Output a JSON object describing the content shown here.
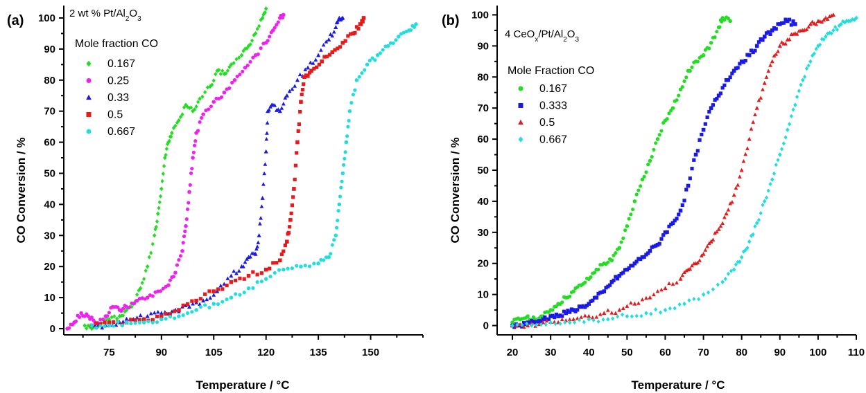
{
  "chart_data": [
    {
      "type": "scatter",
      "panel_label": "(a)",
      "title": "2 wt % Pt/Al2O3",
      "title_parts": {
        "a": "2 wt % Pt/Al",
        "b": "2",
        "c": "O",
        "d": "3"
      },
      "xlabel": "Temperature / °C",
      "ylabel": "CO Conversion / %",
      "xlim": [
        62,
        165
      ],
      "ylim": [
        -2,
        104
      ],
      "xticks": [
        75,
        90,
        105,
        120,
        135,
        150
      ],
      "yticks": [
        0,
        10,
        20,
        30,
        40,
        50,
        60,
        70,
        80,
        90,
        100
      ],
      "legend_title": "Mole fraction CO",
      "legend_position": "top-left",
      "series": [
        {
          "name": "0.167",
          "color": "#22dd22",
          "marker": "diamond",
          "points": [
            [
              68,
              1
            ],
            [
              70,
              0
            ],
            [
              72,
              1
            ],
            [
              75,
              3
            ],
            [
              78,
              4
            ],
            [
              80,
              6
            ],
            [
              82,
              8
            ],
            [
              84,
              13
            ],
            [
              86,
              20
            ],
            [
              88,
              30
            ],
            [
              89,
              37
            ],
            [
              90,
              45
            ],
            [
              91,
              55
            ],
            [
              92,
              60
            ],
            [
              93,
              63
            ],
            [
              95,
              67
            ],
            [
              97,
              72
            ],
            [
              99,
              70
            ],
            [
              101,
              74
            ],
            [
              104,
              78
            ],
            [
              106,
              83
            ],
            [
              108,
              82
            ],
            [
              110,
              85
            ],
            [
              113,
              88
            ],
            [
              115,
              91
            ],
            [
              117,
              95
            ],
            [
              119,
              100
            ],
            [
              120,
              103
            ]
          ]
        },
        {
          "name": "0.25",
          "color": "#ee22ee",
          "marker": "circle",
          "points": [
            [
              63,
              0
            ],
            [
              65,
              2
            ],
            [
              67,
              5
            ],
            [
              69,
              4
            ],
            [
              71,
              2
            ],
            [
              74,
              4
            ],
            [
              76,
              7
            ],
            [
              78,
              6
            ],
            [
              80,
              7
            ],
            [
              83,
              9
            ],
            [
              86,
              10
            ],
            [
              89,
              12
            ],
            [
              92,
              14
            ],
            [
              94,
              18
            ],
            [
              96,
              25
            ],
            [
              97,
              33
            ],
            [
              98,
              44
            ],
            [
              99,
              55
            ],
            [
              100,
              63
            ],
            [
              102,
              69
            ],
            [
              105,
              73
            ],
            [
              108,
              76
            ],
            [
              111,
              80
            ],
            [
              114,
              84
            ],
            [
              117,
              88
            ],
            [
              120,
              92
            ],
            [
              122,
              96
            ],
            [
              124,
              100
            ],
            [
              125,
              101
            ]
          ]
        },
        {
          "name": "0.33",
          "color": "#1a1ae6",
          "marker": "triangle",
          "points": [
            [
              70,
              1
            ],
            [
              74,
              1
            ],
            [
              78,
              2
            ],
            [
              82,
              3
            ],
            [
              86,
              4
            ],
            [
              90,
              5
            ],
            [
              94,
              6
            ],
            [
              98,
              7
            ],
            [
              102,
              9
            ],
            [
              106,
              12
            ],
            [
              110,
              17
            ],
            [
              113,
              20
            ],
            [
              115,
              23
            ],
            [
              117,
              24
            ],
            [
              118,
              30
            ],
            [
              119,
              42
            ],
            [
              120,
              57
            ],
            [
              120.5,
              70
            ],
            [
              122,
              72
            ],
            [
              124,
              70
            ],
            [
              126,
              75
            ],
            [
              129,
              80
            ],
            [
              132,
              84
            ],
            [
              135,
              88
            ],
            [
              138,
              93
            ],
            [
              140,
              97
            ],
            [
              141,
              100
            ],
            [
              142,
              100
            ]
          ]
        },
        {
          "name": "0.5",
          "color": "#e61a1a",
          "marker": "square",
          "points": [
            [
              70,
              1
            ],
            [
              75,
              2
            ],
            [
              80,
              2
            ],
            [
              85,
              3
            ],
            [
              90,
              4
            ],
            [
              95,
              6
            ],
            [
              100,
              9
            ],
            [
              105,
              12
            ],
            [
              110,
              15
            ],
            [
              115,
              17
            ],
            [
              120,
              19
            ],
            [
              124,
              22
            ],
            [
              126,
              28
            ],
            [
              127,
              35
            ],
            [
              128,
              45
            ],
            [
              129,
              60
            ],
            [
              130,
              73
            ],
            [
              131,
              81
            ],
            [
              133,
              83
            ],
            [
              136,
              86
            ],
            [
              139,
              89
            ],
            [
              142,
              92
            ],
            [
              145,
              95
            ],
            [
              147,
              98
            ],
            [
              148,
              100
            ]
          ]
        },
        {
          "name": "0.667",
          "color": "#22dddd",
          "marker": "circle",
          "points": [
            [
              70,
              1
            ],
            [
              75,
              1
            ],
            [
              80,
              2
            ],
            [
              85,
              2
            ],
            [
              90,
              3
            ],
            [
              95,
              4
            ],
            [
              100,
              6
            ],
            [
              105,
              8
            ],
            [
              110,
              10
            ],
            [
              115,
              13
            ],
            [
              120,
              16
            ],
            [
              125,
              19
            ],
            [
              130,
              20
            ],
            [
              135,
              21
            ],
            [
              138,
              23
            ],
            [
              140,
              30
            ],
            [
              141,
              40
            ],
            [
              142,
              50
            ],
            [
              143,
              60
            ],
            [
              144,
              70
            ],
            [
              146,
              80
            ],
            [
              149,
              85
            ],
            [
              152,
              88
            ],
            [
              155,
              91
            ],
            [
              158,
              94
            ],
            [
              161,
              96
            ],
            [
              163,
              98
            ]
          ]
        }
      ]
    },
    {
      "type": "scatter",
      "panel_label": "(b)",
      "title": "4 CeOx/Pt/Al2O3",
      "title_parts": {
        "a": "4 CeO",
        "b": "x",
        "c": "/Pt/Al",
        "d": "2",
        "e": "O",
        "f": "3"
      },
      "xlabel": "Temperature / °C",
      "ylabel": "CO Conversion / %",
      "xlim": [
        16,
        110
      ],
      "ylim": [
        -3,
        103
      ],
      "xticks": [
        20,
        30,
        40,
        50,
        60,
        70,
        80,
        90,
        100,
        110
      ],
      "yticks": [
        0,
        10,
        20,
        30,
        40,
        50,
        60,
        70,
        80,
        90,
        100
      ],
      "legend_title": "Mole Fraction CO",
      "legend_position": "top-left",
      "series": [
        {
          "name": "0.167",
          "color": "#22dd22",
          "marker": "circle",
          "points": [
            [
              20,
              1
            ],
            [
              22,
              2
            ],
            [
              24,
              3
            ],
            [
              26,
              2
            ],
            [
              28,
              3
            ],
            [
              30,
              5
            ],
            [
              32,
              7
            ],
            [
              34,
              9
            ],
            [
              36,
              11
            ],
            [
              38,
              13
            ],
            [
              40,
              15
            ],
            [
              42,
              18
            ],
            [
              44,
              20
            ],
            [
              46,
              21
            ],
            [
              48,
              25
            ],
            [
              50,
              32
            ],
            [
              52,
              40
            ],
            [
              54,
              47
            ],
            [
              56,
              53
            ],
            [
              58,
              60
            ],
            [
              60,
              66
            ],
            [
              62,
              70
            ],
            [
              64,
              76
            ],
            [
              66,
              82
            ],
            [
              68,
              85
            ],
            [
              70,
              87
            ],
            [
              72,
              91
            ],
            [
              74,
              96
            ],
            [
              75,
              99
            ],
            [
              77,
              98
            ]
          ]
        },
        {
          "name": "0.333",
          "color": "#1a1ae6",
          "marker": "square",
          "points": [
            [
              20,
              0
            ],
            [
              22,
              0
            ],
            [
              24,
              1
            ],
            [
              26,
              1
            ],
            [
              28,
              2
            ],
            [
              30,
              3
            ],
            [
              32,
              3
            ],
            [
              34,
              4
            ],
            [
              36,
              5
            ],
            [
              38,
              6
            ],
            [
              40,
              7
            ],
            [
              42,
              9
            ],
            [
              44,
              11
            ],
            [
              46,
              14
            ],
            [
              48,
              16
            ],
            [
              50,
              18
            ],
            [
              52,
              20
            ],
            [
              54,
              22
            ],
            [
              56,
              24
            ],
            [
              58,
              26
            ],
            [
              60,
              30
            ],
            [
              62,
              33
            ],
            [
              64,
              37
            ],
            [
              66,
              45
            ],
            [
              68,
              55
            ],
            [
              70,
              63
            ],
            [
              72,
              70
            ],
            [
              74,
              74
            ],
            [
              76,
              79
            ],
            [
              78,
              82
            ],
            [
              80,
              85
            ],
            [
              82,
              87
            ],
            [
              84,
              90
            ],
            [
              86,
              93
            ],
            [
              88,
              95
            ],
            [
              90,
              97
            ],
            [
              92,
              98
            ],
            [
              94,
              97
            ]
          ]
        },
        {
          "name": "0.5",
          "color": "#e61a1a",
          "marker": "triangle",
          "points": [
            [
              20,
              0
            ],
            [
              24,
              0
            ],
            [
              28,
              1
            ],
            [
              32,
              1
            ],
            [
              36,
              2
            ],
            [
              40,
              3
            ],
            [
              44,
              4
            ],
            [
              48,
              5
            ],
            [
              52,
              7
            ],
            [
              56,
              9
            ],
            [
              60,
              12
            ],
            [
              64,
              15
            ],
            [
              66,
              18
            ],
            [
              68,
              20
            ],
            [
              70,
              23
            ],
            [
              72,
              27
            ],
            [
              74,
              31
            ],
            [
              76,
              36
            ],
            [
              78,
              42
            ],
            [
              80,
              50
            ],
            [
              82,
              60
            ],
            [
              84,
              70
            ],
            [
              86,
              78
            ],
            [
              88,
              85
            ],
            [
              90,
              90
            ],
            [
              92,
              92
            ],
            [
              94,
              94
            ],
            [
              96,
              95
            ],
            [
              98,
              97
            ],
            [
              100,
              98
            ],
            [
              102,
              99
            ],
            [
              104,
              100
            ]
          ]
        },
        {
          "name": "0.667",
          "color": "#22dddd",
          "marker": "diamond",
          "points": [
            [
              20,
              0
            ],
            [
              25,
              0
            ],
            [
              30,
              1
            ],
            [
              35,
              1
            ],
            [
              40,
              2
            ],
            [
              45,
              2
            ],
            [
              50,
              3
            ],
            [
              55,
              4
            ],
            [
              60,
              5
            ],
            [
              65,
              7
            ],
            [
              70,
              10
            ],
            [
              75,
              14
            ],
            [
              78,
              18
            ],
            [
              80,
              22
            ],
            [
              82,
              27
            ],
            [
              84,
              33
            ],
            [
              86,
              40
            ],
            [
              88,
              47
            ],
            [
              90,
              55
            ],
            [
              92,
              63
            ],
            [
              94,
              71
            ],
            [
              96,
              79
            ],
            [
              98,
              85
            ],
            [
              100,
              90
            ],
            [
              102,
              93
            ],
            [
              104,
              95
            ],
            [
              106,
              97
            ],
            [
              108,
              98
            ],
            [
              110,
              99
            ]
          ]
        }
      ]
    }
  ]
}
